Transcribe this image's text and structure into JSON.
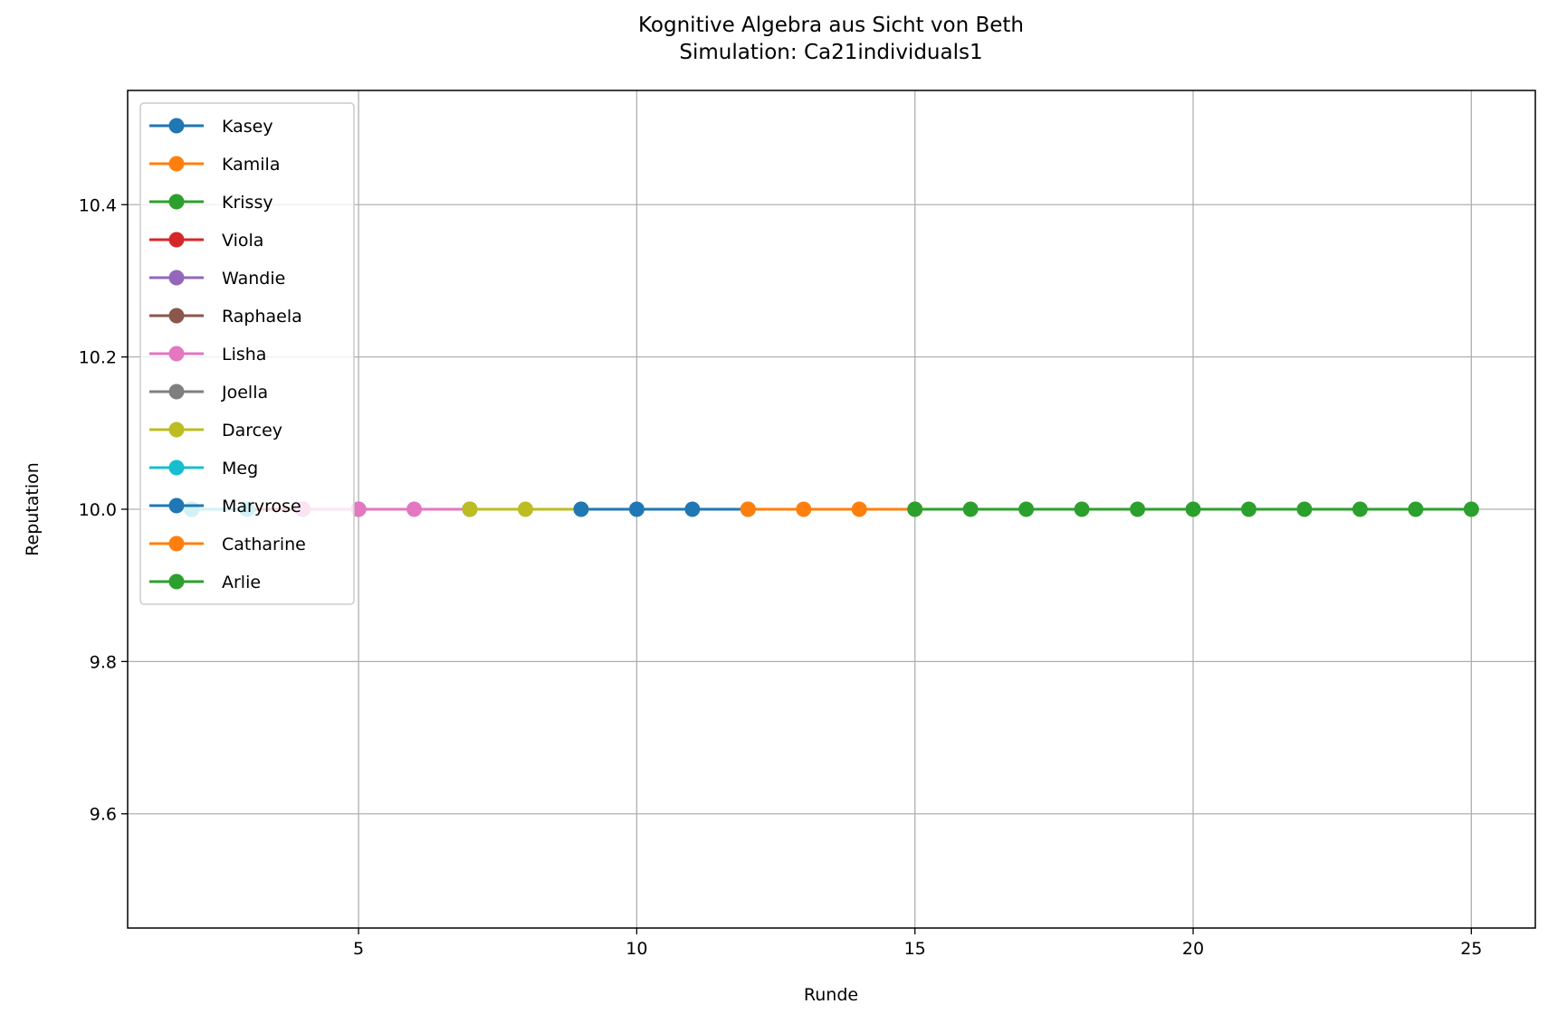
{
  "chart_data": {
    "type": "line",
    "title": "Kognitive Algebra aus Sicht von Beth",
    "subtitle": "Simulation: Ca21individuals1",
    "xlabel": "Runde",
    "ylabel": "Reputation",
    "xlim": [
      0.85,
      26.15
    ],
    "ylim": [
      9.45,
      10.55
    ],
    "xticks": [
      5,
      10,
      15,
      20,
      25
    ],
    "yticks": [
      9.6,
      9.8,
      10.0,
      10.2,
      10.4
    ],
    "ytick_labels": [
      "9.6",
      "9.8",
      "10.0",
      "10.2",
      "10.4"
    ],
    "grid": true,
    "legend_position": "top-left",
    "series": [
      {
        "name": "Kasey",
        "color": "#1f77b4",
        "x": [
          2
        ],
        "y": [
          10.0
        ]
      },
      {
        "name": "Kamila",
        "color": "#ff7f0e",
        "x": [
          2
        ],
        "y": [
          10.0
        ]
      },
      {
        "name": "Krissy",
        "color": "#2ca02c",
        "x": [
          2,
          3
        ],
        "y": [
          10.0,
          10.0
        ]
      },
      {
        "name": "Viola",
        "color": "#d62728",
        "x": [
          3,
          4
        ],
        "y": [
          10.0,
          10.0
        ]
      },
      {
        "name": "Wandie",
        "color": "#9467bd",
        "x": [
          4
        ],
        "y": [
          10.0
        ]
      },
      {
        "name": "Raphaela",
        "color": "#8c564b",
        "x": [
          4,
          5
        ],
        "y": [
          10.0,
          10.0
        ]
      },
      {
        "name": "Lisha",
        "color": "#e377c2",
        "x": [
          4,
          5,
          6,
          7
        ],
        "y": [
          10.0,
          10.0,
          10.0,
          10.0
        ]
      },
      {
        "name": "Joella",
        "color": "#7f7f7f",
        "x": [
          7
        ],
        "y": [
          10.0
        ]
      },
      {
        "name": "Darcey",
        "color": "#bcbd22",
        "x": [
          7,
          8,
          9
        ],
        "y": [
          10.0,
          10.0,
          10.0
        ]
      },
      {
        "name": "Meg",
        "color": "#17becf",
        "x": [
          2,
          3
        ],
        "y": [
          10.0,
          10.0
        ]
      },
      {
        "name": "Maryrose",
        "color": "#1f77b4",
        "x": [
          9,
          10,
          11,
          12
        ],
        "y": [
          10.0,
          10.0,
          10.0,
          10.0
        ]
      },
      {
        "name": "Catharine",
        "color": "#ff7f0e",
        "x": [
          12,
          13,
          14,
          15
        ],
        "y": [
          10.0,
          10.0,
          10.0,
          10.0
        ]
      },
      {
        "name": "Arlie",
        "color": "#2ca02c",
        "x": [
          15,
          16,
          17,
          18,
          19,
          20,
          21,
          22,
          23,
          24,
          25
        ],
        "y": [
          10.0,
          10.0,
          10.0,
          10.0,
          10.0,
          10.0,
          10.0,
          10.0,
          10.0,
          10.0,
          10.0
        ]
      }
    ]
  }
}
